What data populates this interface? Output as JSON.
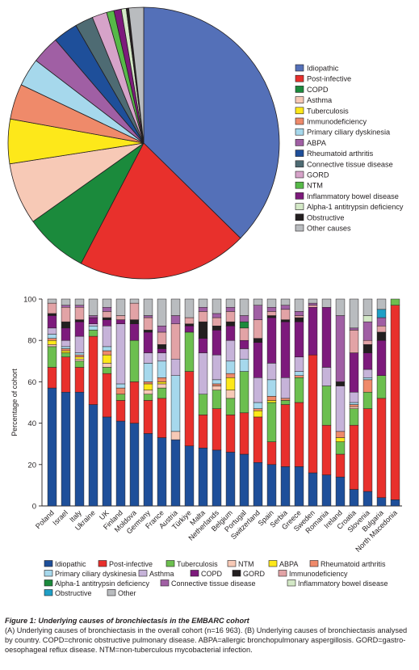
{
  "figure": {
    "caption_title": "Figure 1: Underlying causes of bronchiectasis in the EMBARC cohort",
    "caption_text": "(A) Underlying causes of bronchiectasis in the overall cohort (n=16 963). (B) Underlying causes of bronchiectasis analysed by country. COPD=chronic obstructive pulmonary disease. ABPA=allergic bronchopulmonary aspergillosis. GORD=gastro-oesophageal reflux disease. NTM=non-tuberculous mycobacterial infection."
  },
  "chart_data": [
    {
      "type": "pie",
      "legend_position": "right",
      "slices": [
        {
          "label": "Idiopathic",
          "value": 38.1,
          "color": "#5470b8"
        },
        {
          "label": "Post-infective",
          "value": 20.7,
          "color": "#e8302c"
        },
        {
          "label": "COPD",
          "value": 7.7,
          "color": "#1b8a3c"
        },
        {
          "label": "Asthma",
          "value": 7.5,
          "color": "#f7c9b6"
        },
        {
          "label": "Tuberculosis",
          "value": 5.4,
          "color": "#fde81a"
        },
        {
          "label": "Immunodeficiency",
          "value": 4.3,
          "color": "#ef8a6a"
        },
        {
          "label": "Primary ciliary dyskinesia",
          "value": 3.4,
          "color": "#a6d8ec"
        },
        {
          "label": "ABPA",
          "value": 3.4,
          "color": "#a05fa4"
        },
        {
          "label": "Rheumatoid arthritis",
          "value": 3.0,
          "color": "#1e4f9a"
        },
        {
          "label": "Connective tissue disease",
          "value": 2.2,
          "color": "#4e6b73"
        },
        {
          "label": "GORD",
          "value": 1.8,
          "color": "#d6a3c9"
        },
        {
          "label": "NTM",
          "value": 0.9,
          "color": "#56b948"
        },
        {
          "label": "Inflammatory bowel disease",
          "value": 0.9,
          "color": "#7d1a7c"
        },
        {
          "label": "Alpha-1 antitrypsin deficiency",
          "value": 0.6,
          "color": "#d3e8c6"
        },
        {
          "label": "Obstructive",
          "value": 0.3,
          "color": "#231f20"
        },
        {
          "label": "Other causes",
          "value": 1.8,
          "color": "#b9bcbf"
        }
      ]
    },
    {
      "type": "bar",
      "stacked": true,
      "ylabel": "Percentage of cohort",
      "ylim": [
        0,
        100
      ],
      "yticks": [
        0,
        20,
        40,
        60,
        80,
        100
      ],
      "legend_position": "bottom",
      "categories": [
        "Poland",
        "Israel",
        "Italy",
        "Ukraine",
        "UK",
        "Finland",
        "Moldova",
        "Germany",
        "France",
        "Austria",
        "Türkiye",
        "Malta",
        "Netherlands",
        "Belgium",
        "Portugal",
        "Switzerland",
        "Spain",
        "Serbia",
        "Greece",
        "Sweden",
        "Romania",
        "Ireland",
        "Croatia",
        "Slovenia",
        "Bulgaria",
        "North Macedonia"
      ],
      "series": [
        {
          "name": "Idiopathic",
          "color": "#1e4f9a",
          "values": [
            57,
            55,
            55,
            49,
            43,
            41,
            40,
            35,
            33,
            32,
            29,
            28,
            27,
            26,
            25,
            21,
            20,
            19,
            19,
            16,
            15,
            14,
            8,
            7,
            4,
            3
          ]
        },
        {
          "name": "Post-infective",
          "color": "#e8302c",
          "values": [
            10,
            17,
            12,
            33,
            21,
            10,
            20,
            16,
            19,
            0,
            36,
            16,
            20,
            18,
            20,
            22,
            11,
            30,
            31,
            57,
            24,
            11,
            31,
            40,
            48,
            94
          ]
        },
        {
          "name": "Tuberculosis",
          "color": "#6cbf4f",
          "values": [
            10,
            2,
            3,
            3,
            3,
            3,
            20,
            3,
            5,
            0,
            19,
            10,
            9,
            8,
            20,
            0,
            19,
            2,
            12,
            0,
            19,
            6,
            8,
            8,
            11,
            3
          ]
        },
        {
          "name": "NTM",
          "color": "#f7c9b6",
          "values": [
            1,
            0,
            1,
            0,
            2,
            0,
            0,
            2,
            2,
            4,
            0,
            0,
            2,
            4,
            0,
            0,
            0,
            0,
            0,
            0,
            0,
            0,
            1,
            0,
            0,
            0
          ]
        },
        {
          "name": "ABPA",
          "color": "#fde81a",
          "values": [
            2,
            1,
            1,
            0,
            4,
            0,
            0,
            3,
            1,
            0,
            0,
            0,
            0,
            6,
            0,
            3,
            1,
            0,
            0,
            0,
            0,
            2,
            0,
            0,
            0,
            0
          ]
        },
        {
          "name": "Rheumatoid arthritis",
          "color": "#ef8a6a",
          "values": [
            1,
            1,
            1,
            0,
            2,
            3,
            0,
            1,
            2,
            0,
            0,
            0,
            1,
            2,
            0,
            1,
            2,
            1,
            1,
            0,
            0,
            3,
            1,
            6,
            0,
            0
          ]
        },
        {
          "name": "Primary ciliary dyskinesia",
          "color": "#a6d8ec",
          "values": [
            2,
            1,
            1,
            2,
            2,
            2,
            0,
            9,
            8,
            27,
            0,
            0,
            2,
            6,
            6,
            3,
            8,
            0,
            2,
            0,
            0,
            0,
            1,
            1,
            0,
            0
          ]
        },
        {
          "name": "Asthma",
          "color": "#c6b3d9",
          "values": [
            3,
            3,
            8,
            1,
            10,
            29,
            0,
            5,
            4,
            8,
            0,
            20,
            12,
            10,
            5,
            12,
            8,
            10,
            7,
            0,
            9,
            22,
            5,
            4,
            0,
            0
          ]
        },
        {
          "name": "COPD",
          "color": "#7d1a7c",
          "values": [
            6,
            6,
            7,
            3,
            3,
            2,
            8,
            10,
            2,
            0,
            3,
            7,
            12,
            7,
            4,
            17,
            22,
            27,
            17,
            23,
            29,
            0,
            19,
            8,
            17,
            0
          ]
        },
        {
          "name": "GORD",
          "color": "#231f20",
          "values": [
            1,
            3,
            1,
            0,
            1,
            0,
            2,
            1,
            2,
            0,
            1,
            8,
            2,
            2,
            0,
            2,
            1,
            1,
            2,
            0,
            0,
            2,
            0,
            4,
            4,
            0
          ]
        },
        {
          "name": "Immunodeficiency",
          "color": "#e2a3a6",
          "values": [
            5,
            7,
            6,
            0,
            3,
            2,
            8,
            6,
            6,
            17,
            3,
            5,
            4,
            5,
            6,
            9,
            2,
            5,
            1,
            1,
            0,
            0,
            11,
            2,
            3,
            0
          ]
        },
        {
          "name": "Alpha-1 antitrypsin deficiency",
          "color": "#1b8a3c",
          "values": [
            0,
            0,
            0,
            0,
            0,
            0,
            0,
            0,
            0,
            0,
            0,
            0,
            0,
            0,
            3,
            0,
            0,
            0,
            0,
            0,
            0,
            0,
            0,
            0,
            0,
            0
          ]
        },
        {
          "name": "Connective tissue disease",
          "color": "#a05fa4",
          "values": [
            0,
            1,
            1,
            1,
            2,
            0,
            0,
            1,
            3,
            4,
            0,
            2,
            2,
            2,
            3,
            7,
            2,
            2,
            2,
            1,
            0,
            32,
            1,
            9,
            4,
            0
          ]
        },
        {
          "name": "Inflammatory bowel disease",
          "color": "#d3e8c6",
          "values": [
            0,
            0,
            0,
            0,
            0,
            0,
            0,
            0,
            0,
            0,
            0,
            0,
            0,
            0,
            0,
            0,
            0,
            0,
            0,
            0,
            0,
            0,
            0,
            3,
            0,
            0
          ]
        },
        {
          "name": "Obstructive",
          "color": "#1f9fc6",
          "values": [
            0,
            0,
            0,
            0,
            0,
            0,
            0,
            0,
            0,
            0,
            0,
            0,
            0,
            0,
            0,
            0,
            0,
            0,
            0,
            0,
            0,
            0,
            0,
            0,
            4,
            0
          ]
        },
        {
          "name": "Other",
          "color": "#b9bcbf",
          "values": [
            2,
            3,
            3,
            8,
            4,
            8,
            2,
            8,
            13,
            8,
            9,
            4,
            7,
            4,
            8,
            3,
            4,
            3,
            6,
            2,
            4,
            8,
            14,
            8,
            5,
            0
          ]
        }
      ]
    }
  ]
}
